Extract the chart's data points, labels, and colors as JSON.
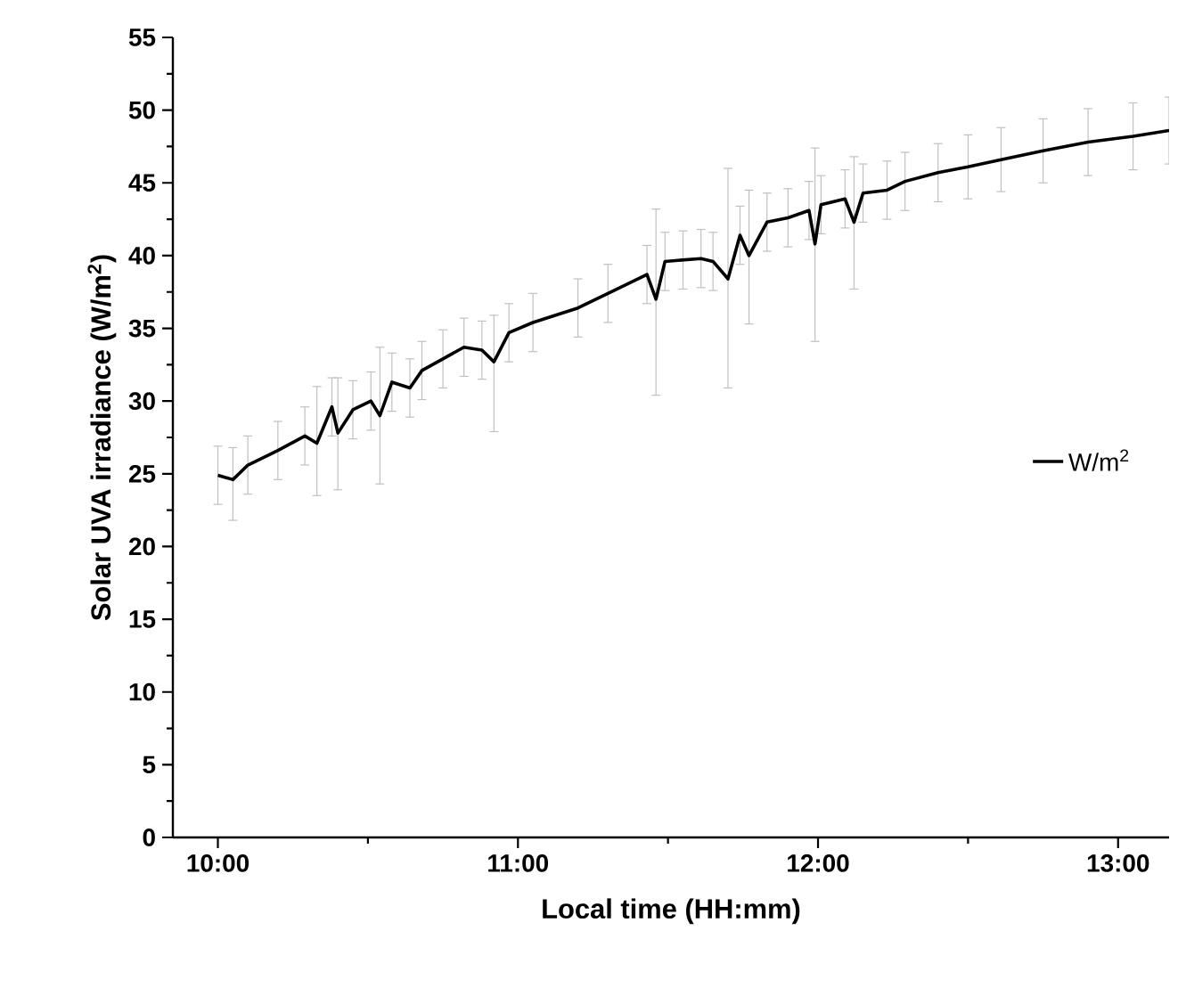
{
  "chart_data": {
    "type": "line",
    "xlabel": "Local time (HH:mm)",
    "ylabel": "Solar UVA irradiance (W/m$^{2}$)",
    "xlim": [
      9.85,
      13.17
    ],
    "ylim": [
      0,
      55
    ],
    "xticks": [
      {
        "value": 10,
        "label": "10:00"
      },
      {
        "value": 10.5,
        "label": null
      },
      {
        "value": 11,
        "label": "11:00"
      },
      {
        "value": 11.5,
        "label": null
      },
      {
        "value": 12,
        "label": "12:00"
      },
      {
        "value": 12.5,
        "label": null
      },
      {
        "value": 13,
        "label": "13:00"
      }
    ],
    "yticks": [
      0,
      {
        "value": 2.5,
        "label": null
      },
      5,
      {
        "value": 7.5,
        "label": null
      },
      10,
      {
        "value": 12.5,
        "label": null
      },
      15,
      {
        "value": 17.5,
        "label": null
      },
      20,
      {
        "value": 22.5,
        "label": null
      },
      25,
      {
        "value": 27.5,
        "label": null
      },
      30,
      {
        "value": 32.5,
        "label": null
      },
      35,
      {
        "value": 37.5,
        "label": null
      },
      40,
      {
        "value": 42.5,
        "label": null
      },
      45,
      {
        "value": 47.5,
        "label": null
      },
      50,
      {
        "value": 52.5,
        "label": null
      },
      55
    ],
    "legend": "right",
    "marker": "none",
    "line_style": "solid",
    "grid": false,
    "series": [
      {
        "name": "W/m$^{2}$",
        "color": "#000000",
        "x": [
          10.0,
          10.05,
          10.1,
          10.2,
          10.29,
          10.33,
          10.38,
          10.4,
          10.45,
          10.51,
          10.54,
          10.58,
          10.64,
          10.68,
          10.75,
          10.82,
          10.88,
          10.92,
          10.97,
          11.05,
          11.2,
          11.3,
          11.43,
          11.46,
          11.49,
          11.55,
          11.61,
          11.65,
          11.7,
          11.74,
          11.77,
          11.83,
          11.9,
          11.97,
          11.99,
          12.01,
          12.09,
          12.12,
          12.15,
          12.23,
          12.29,
          12.4,
          12.5,
          12.61,
          12.75,
          12.9,
          13.05,
          13.17
        ],
        "values": [
          24.9,
          24.6,
          25.6,
          26.6,
          27.6,
          27.1,
          29.6,
          27.8,
          29.4,
          30.0,
          29.0,
          31.3,
          30.9,
          32.1,
          32.9,
          33.7,
          33.5,
          32.7,
          34.7,
          35.4,
          36.4,
          37.4,
          38.7,
          37.0,
          39.6,
          39.7,
          39.8,
          39.6,
          38.4,
          41.4,
          40.0,
          42.3,
          42.6,
          43.1,
          40.8,
          43.5,
          43.9,
          42.3,
          44.3,
          44.5,
          45.1,
          45.7,
          46.1,
          46.6,
          47.2,
          47.8,
          48.2,
          48.6
        ],
        "errors": [
          2,
          [
            21.8,
            26.8
          ],
          2,
          2,
          2,
          [
            23.5,
            31.0
          ],
          2,
          [
            23.9,
            31.6
          ],
          2,
          2,
          [
            24.3,
            33.7
          ],
          2,
          2,
          2,
          2,
          2,
          2,
          [
            27.9,
            35.9
          ],
          2,
          2,
          2,
          2,
          2,
          [
            30.4,
            43.2
          ],
          2,
          2,
          2,
          2,
          [
            30.9,
            46.0
          ],
          2,
          [
            35.3,
            44.5
          ],
          2,
          2,
          2,
          [
            34.1,
            47.4
          ],
          2,
          2,
          [
            37.7,
            46.8
          ],
          2,
          2,
          2,
          2,
          2.2,
          2.2,
          2.2,
          2.3,
          2.3,
          2.3
        ]
      }
    ]
  }
}
